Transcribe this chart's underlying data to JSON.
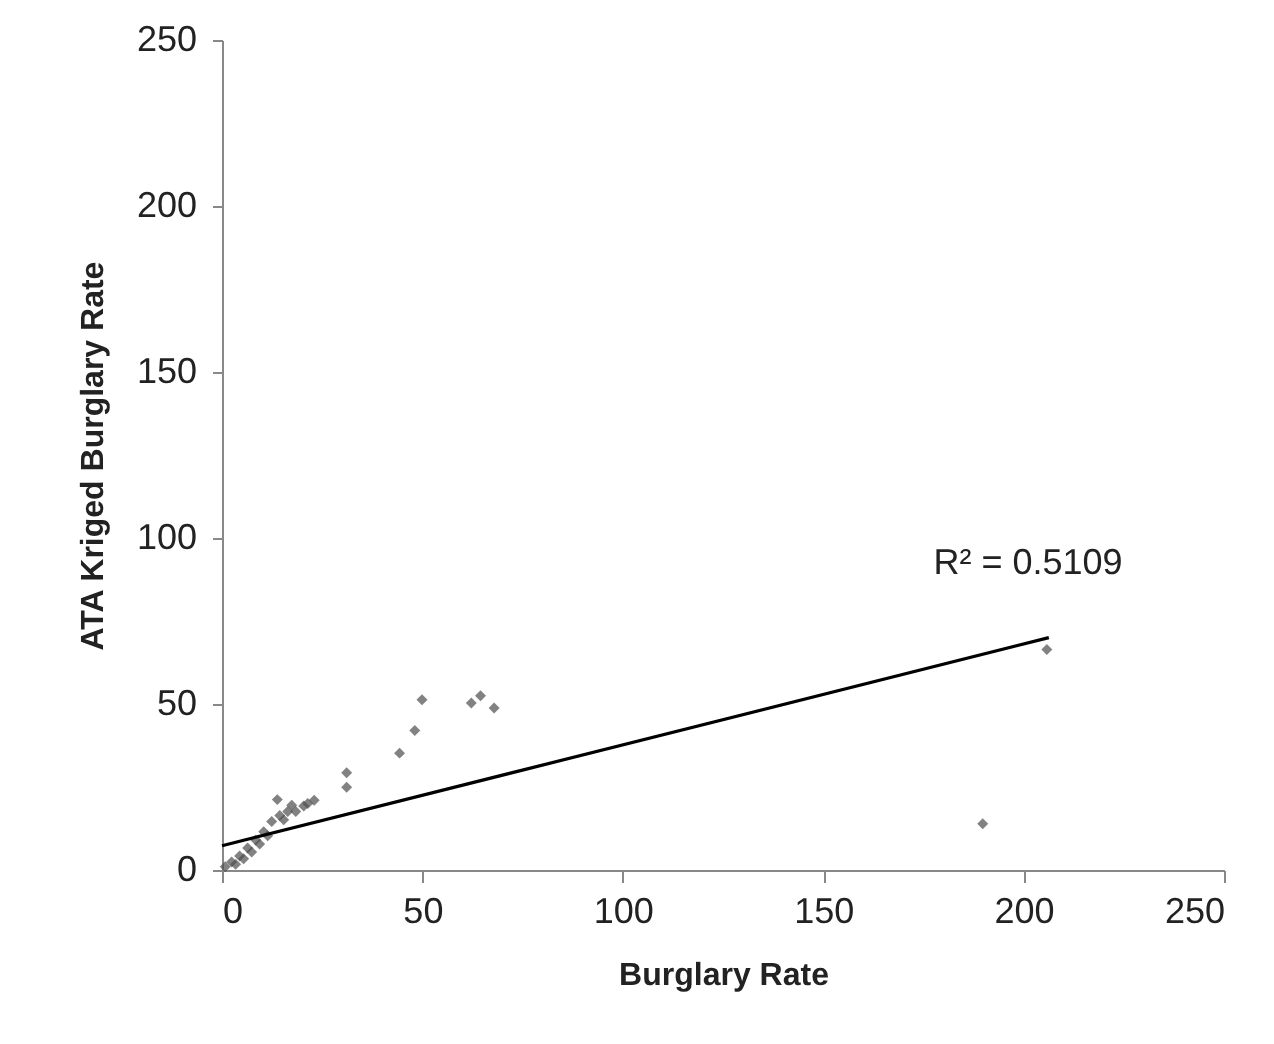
{
  "chart_data": {
    "type": "scatter",
    "xlabel": "Burglary Rate",
    "ylabel": "ATA Kriged Burglary Rate",
    "xlim": [
      0,
      250
    ],
    "ylim": [
      0,
      250
    ],
    "xticks": [
      0,
      50,
      100,
      150,
      200,
      250
    ],
    "yticks": [
      0,
      50,
      100,
      150,
      200,
      250
    ],
    "grid": false,
    "series": [
      {
        "color": "#4d4d4d",
        "marker": "diamond",
        "x": [
          205.8,
          189.8,
          49.9,
          62.2,
          64.5,
          67.9,
          48.1,
          44.3,
          31.1,
          31.1,
          13.8,
          23,
          20.4,
          17.4,
          16.4,
          14.4,
          12.4,
          10.4,
          8.4,
          6.4,
          4.4,
          2.4,
          0.8,
          3.4,
          5.4,
          7.4,
          9.4,
          11.4,
          15.4,
          18.4,
          21.4
        ],
        "values": [
          66.4,
          13.9,
          51.3,
          50.3,
          52.5,
          48.8,
          42,
          35.2,
          29.3,
          24.9,
          21.2,
          21,
          19.3,
          19.5,
          17.6,
          16.4,
          14.6,
          11.5,
          9,
          6.6,
          4.2,
          2.4,
          1,
          1.7,
          3.4,
          5.4,
          7.8,
          10.3,
          15.1,
          17.6,
          20
        ]
      },
      {
        "type": "line",
        "color": "#000000",
        "line_style": "solid",
        "x": [
          0,
          206.3
        ],
        "values": [
          7.3,
          70
        ]
      }
    ],
    "annotations": [
      "R² = 0.5109"
    ]
  }
}
